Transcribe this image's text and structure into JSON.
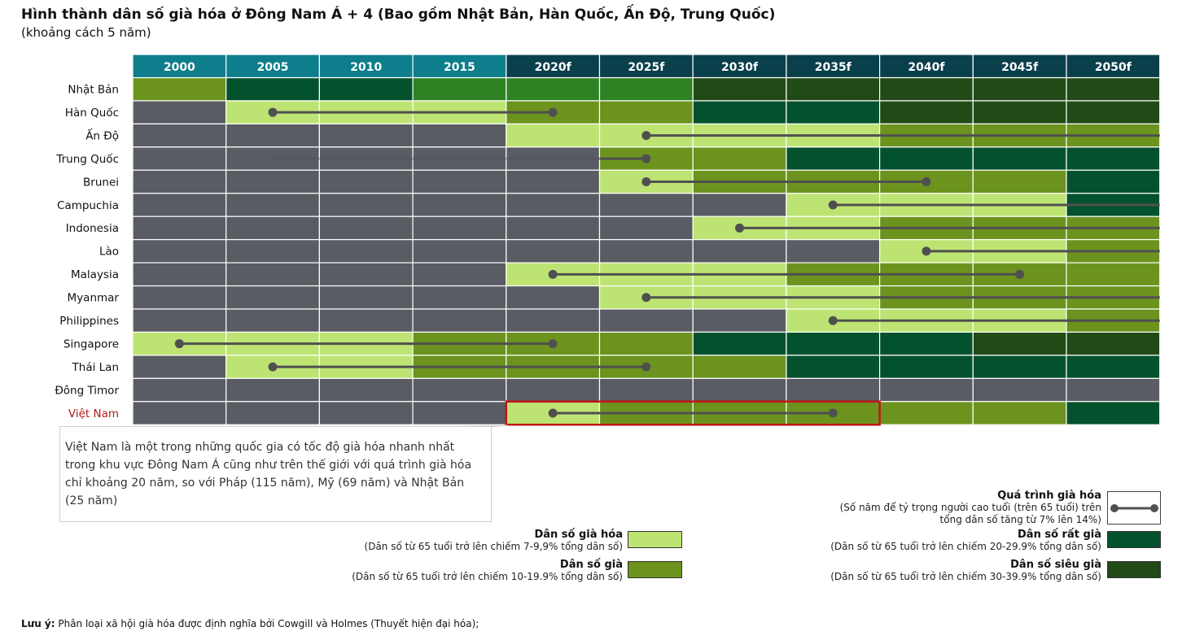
{
  "title": "Hình thành dân số già hóa ở Đông Nam Á + 4 (Bao gồm Nhật Bản, Hàn Quốc, Ấn Độ, Trung Quốc)",
  "subtitle": "(khoảng cách 5 năm)",
  "colors": {
    "header_actual": "#0e7d8c",
    "header_forecast": "#0a3f4c",
    "none": "#5a5c63",
    "aging": "#bde472",
    "aged": "#6b931e",
    "aged_mid": "#2e8224",
    "very_aged": "#04522d",
    "super_aged": "#214a17",
    "highlight": "#c01616",
    "label_highlight": "#b01a1a",
    "process_line": "#505050"
  },
  "chart_data": {
    "type": "heatmap",
    "columns": [
      "2000",
      "2005",
      "2010",
      "2015",
      "2020f",
      "2025f",
      "2030f",
      "2035f",
      "2040f",
      "2045f",
      "2050f"
    ],
    "forecast_start_index": 4,
    "rows": [
      {
        "name": "Nhật Bản",
        "cells": [
          "aged",
          "very_aged",
          "very_aged",
          "aged_mid",
          "aged_mid",
          "aged_mid",
          "super_aged",
          "super_aged",
          "super_aged",
          "super_aged",
          "super_aged"
        ],
        "process": null
      },
      {
        "name": "Hàn Quốc",
        "cells": [
          "none",
          "aging",
          "aging",
          "aging",
          "aged",
          "aged",
          "very_aged",
          "very_aged",
          "super_aged",
          "super_aged",
          "super_aged"
        ],
        "process": {
          "from": 2005,
          "to": 2020,
          "open_end": false
        }
      },
      {
        "name": "Ấn Độ",
        "cells": [
          "none",
          "none",
          "none",
          "none",
          "aging",
          "aging",
          "aging",
          "aging",
          "aged",
          "aged",
          "aged"
        ],
        "process": {
          "from": 2025,
          "to": 2050,
          "open_end": true
        }
      },
      {
        "name": "Trung Quốc",
        "cells": [
          "none",
          "none",
          "none",
          "none",
          "none",
          "aged",
          "aged",
          "very_aged",
          "very_aged",
          "very_aged",
          "very_aged"
        ],
        "process": {
          "from": 2005,
          "to": 2025,
          "open_end": false,
          "faded": true
        }
      },
      {
        "name": "Brunei",
        "cells": [
          "none",
          "none",
          "none",
          "none",
          "none",
          "aging",
          "aged",
          "aged",
          "aged",
          "aged",
          "very_aged"
        ],
        "process": {
          "from": 2025,
          "to": 2040,
          "open_end": false
        }
      },
      {
        "name": "Campuchia",
        "cells": [
          "none",
          "none",
          "none",
          "none",
          "none",
          "none",
          "none",
          "aging",
          "aging",
          "aging",
          "very_aged"
        ],
        "process": {
          "from": 2035,
          "to": 2050,
          "open_end": true
        }
      },
      {
        "name": "Indonesia",
        "cells": [
          "none",
          "none",
          "none",
          "none",
          "none",
          "none",
          "aging",
          "aging",
          "aged",
          "aged",
          "aged"
        ],
        "process": {
          "from": 2030,
          "to": 2050,
          "open_end": true
        }
      },
      {
        "name": "Lào",
        "cells": [
          "none",
          "none",
          "none",
          "none",
          "none",
          "none",
          "none",
          "none",
          "aging",
          "aging",
          "aged"
        ],
        "process": {
          "from": 2040,
          "to": 2050,
          "open_end": true
        }
      },
      {
        "name": "Malaysia",
        "cells": [
          "none",
          "none",
          "none",
          "none",
          "aging",
          "aging",
          "aging",
          "aged",
          "aged",
          "aged",
          "aged"
        ],
        "process": {
          "from": 2020,
          "to": 2045,
          "open_end": false
        }
      },
      {
        "name": "Myanmar",
        "cells": [
          "none",
          "none",
          "none",
          "none",
          "none",
          "aging",
          "aging",
          "aging",
          "aged",
          "aged",
          "aged"
        ],
        "process": {
          "from": 2025,
          "to": 2050,
          "open_end": true
        }
      },
      {
        "name": "Philippines",
        "cells": [
          "none",
          "none",
          "none",
          "none",
          "none",
          "none",
          "none",
          "aging",
          "aging",
          "aging",
          "aged"
        ],
        "process": {
          "from": 2035,
          "to": 2050,
          "open_end": true
        }
      },
      {
        "name": "Singapore",
        "cells": [
          "aging",
          "aging",
          "aging",
          "aged",
          "aged",
          "aged",
          "very_aged",
          "very_aged",
          "very_aged",
          "super_aged",
          "super_aged"
        ],
        "process": {
          "from": 2000,
          "to": 2020,
          "open_end": false
        }
      },
      {
        "name": "Thái Lan",
        "cells": [
          "none",
          "aging",
          "aging",
          "aged",
          "aged",
          "aged",
          "aged",
          "very_aged",
          "very_aged",
          "very_aged",
          "very_aged"
        ],
        "process": {
          "from": 2005,
          "to": 2025,
          "open_end": false
        }
      },
      {
        "name": "Đông Timor",
        "cells": [
          "none",
          "none",
          "none",
          "none",
          "none",
          "none",
          "none",
          "none",
          "none",
          "none",
          "none"
        ],
        "process": null
      },
      {
        "name": "Việt Nam",
        "cells": [
          "none",
          "none",
          "none",
          "none",
          "aging",
          "aged",
          "aged",
          "aged",
          "aged",
          "aged",
          "very_aged"
        ],
        "process": {
          "from": 2020,
          "to": 2035,
          "open_end": false
        },
        "highlight": {
          "from": 2020,
          "to": 2035
        }
      }
    ]
  },
  "callout": "Việt Nam là một trong những quốc gia có tốc độ già hóa nhanh nhất trong khu vực Đông Nam Á cũng như trên thế giới với quá trình già hóa chỉ khoảng 20 năm, so với Pháp (115 năm), Mỹ (69 năm) và Nhật Bản (25 năm)",
  "legend": {
    "process_title": "Quá trình già hóa",
    "process_desc_1": "(Số năm để tỷ trọng người cao tuổi (trên 65 tuổi) trên",
    "process_desc_2": "tổng dân số tăng từ 7% lên 14%)",
    "aging_title": "Dân số già hóa",
    "aging_desc": "(Dân số từ 65 tuổi trở lên chiếm 7-9,9% tổng dân số)",
    "aged_title": "Dân số già",
    "aged_desc": "(Dân số từ 65 tuổi trở lên chiếm 10-19.9% tổng dân số)",
    "very_aged_title": "Dân số rất già",
    "very_aged_desc": "(Dân số từ 65 tuổi trở lên chiếm 20-29.9% tổng dân số)",
    "super_aged_title": "Dân số siêu già",
    "super_aged_desc": "(Dân số từ 65 tuổi trở lên chiếm 30-39.9% tổng dân số)"
  },
  "note_label": "Lưu ý:",
  "note_text": "Phân loại xã hội già hóa được định nghĩa bởi Cowgill và Holmes (Thuyết hiện đại hóa);"
}
